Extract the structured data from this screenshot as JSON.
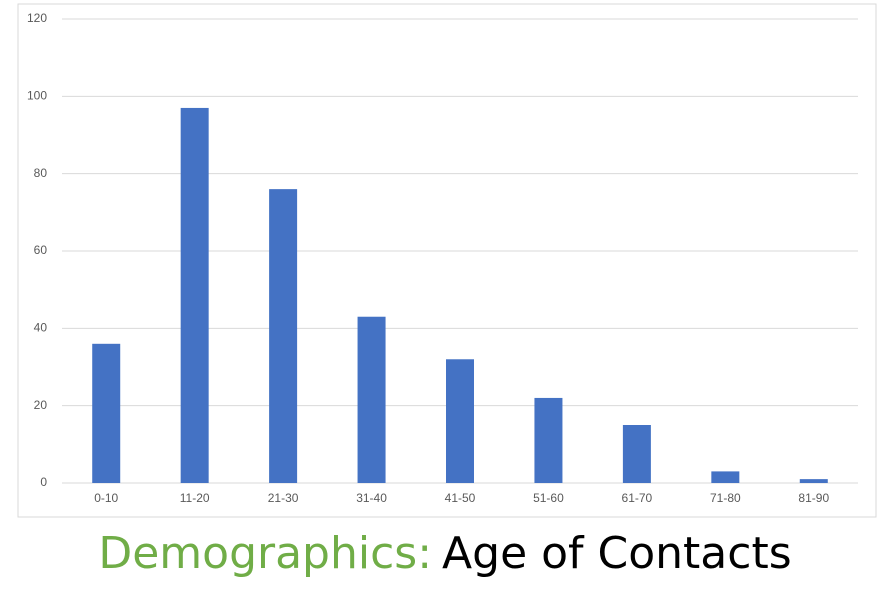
{
  "chart_data": {
    "type": "bar",
    "title": {
      "lead": "Demographics:",
      "main": "Age of Contacts"
    },
    "title_colors": {
      "lead": "#70ad47",
      "main": "#000000"
    },
    "categories": [
      "0-10",
      "11-20",
      "21-30",
      "31-40",
      "41-50",
      "51-60",
      "61-70",
      "71-80",
      "81-90"
    ],
    "values": [
      36,
      97,
      76,
      43,
      32,
      22,
      15,
      3,
      1
    ],
    "color": "#4472c4",
    "ylim": [
      0,
      120
    ],
    "yticks": [
      0,
      20,
      40,
      60,
      80,
      100,
      120
    ],
    "grid": true
  }
}
